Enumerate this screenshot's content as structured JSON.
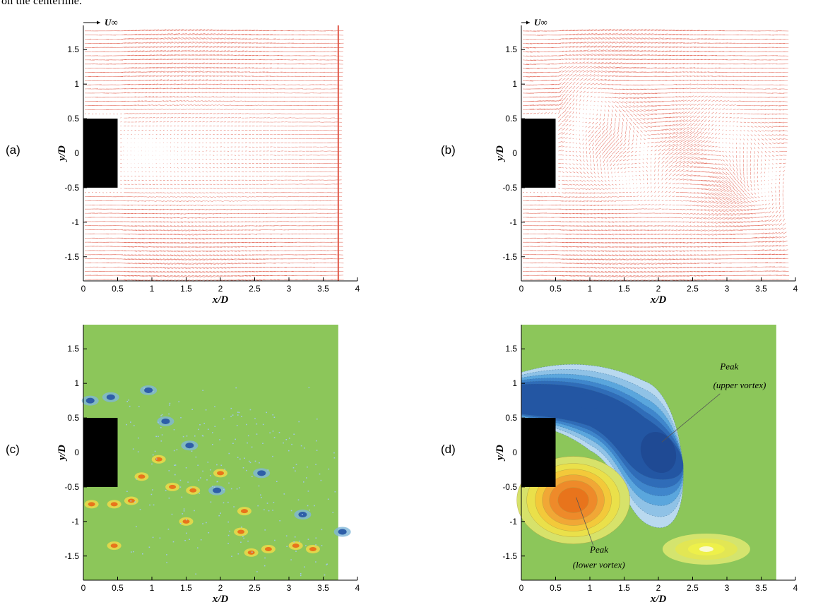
{
  "caption_fragment": "on the centerline.",
  "axes": {
    "xlabel": "x/D",
    "ylabel": "y/D",
    "xticks": [
      "0",
      "0.5",
      "1",
      "1.5",
      "2",
      "2.5",
      "3",
      "3.5",
      "4"
    ],
    "yticks": [
      "1.5",
      "1",
      "0.5",
      "0",
      "-0.5",
      "-1",
      "-1.5"
    ]
  },
  "freestream_label": "U∞",
  "panels": [
    {
      "label": "(a)",
      "kind": "time-averaged velocity vector field",
      "xlabel_shown": "x/D"
    },
    {
      "label": "(b)",
      "kind": "instantaneous velocity vector field",
      "xlabel_shown": "x/D"
    },
    {
      "label": "(c)",
      "kind": "instantaneous vorticity contours",
      "xlabel_shown": "x/D"
    },
    {
      "label": "(d)",
      "kind": "averaged vorticity contours",
      "xlabel_shown": "x/D"
    }
  ],
  "annotations": {
    "upper_peak": {
      "line1": "Peak",
      "line2": "(upper vortex)"
    },
    "lower_peak": {
      "line1": "Peak",
      "line2": "(lower vortex)"
    }
  },
  "colors": {
    "vectors": "#e05a4a",
    "background_contour": "#8cc65a",
    "negative_vorticity": "#2e5ea8",
    "positive_vorticity": "#e8741c",
    "body": "#000000"
  },
  "chart_data": [
    {
      "type": "vector-field",
      "panel": "(a)",
      "xlim": [
        0,
        4
      ],
      "ylim": [
        -1.85,
        1.85
      ],
      "xlabel": "x/D",
      "ylabel": "y/D",
      "body": {
        "x": [
          0,
          0.5
        ],
        "y": [
          -0.5,
          0.5
        ]
      }
    },
    {
      "type": "vector-field",
      "panel": "(b)",
      "xlim": [
        0,
        4
      ],
      "ylim": [
        -1.85,
        1.85
      ],
      "xlabel": "x/D",
      "ylabel": "y/D",
      "body": {
        "x": [
          0,
          0.5
        ],
        "y": [
          -0.5,
          0.5
        ]
      }
    },
    {
      "type": "heatmap",
      "panel": "(c)",
      "xlim": [
        0,
        4
      ],
      "ylim": [
        -1.85,
        1.85
      ],
      "xlabel": "x/D",
      "ylabel": "y/D",
      "body": {
        "x": [
          0,
          0.5
        ],
        "y": [
          -0.5,
          0.5
        ]
      }
    },
    {
      "type": "heatmap",
      "panel": "(d)",
      "xlim": [
        0,
        4
      ],
      "ylim": [
        -1.85,
        1.85
      ],
      "xlabel": "x/D",
      "ylabel": "y/D",
      "body": {
        "x": [
          0,
          0.5
        ],
        "y": [
          -0.5,
          0.5
        ]
      },
      "peaks": [
        {
          "name": "upper vortex",
          "x": 2.0,
          "y": 0.0
        },
        {
          "name": "lower vortex",
          "x": 0.8,
          "y": -0.65
        }
      ]
    }
  ]
}
